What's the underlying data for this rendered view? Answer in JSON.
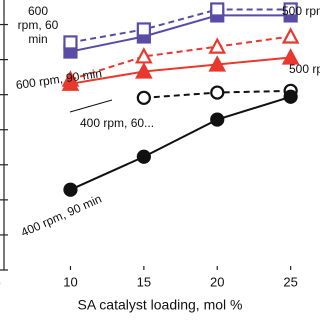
{
  "chart_data": {
    "type": "line",
    "x_label": "SA catalyst loading, mol %",
    "x": [
      10,
      15,
      20,
      25
    ],
    "xlim": [
      5.2,
      27
    ],
    "xticks": [
      5,
      10,
      15,
      20,
      25
    ],
    "ylim": [
      0,
      77
    ],
    "yticks": [
      0,
      10,
      20,
      30,
      40,
      50,
      60,
      70
    ],
    "series": [
      {
        "color": "#5a4ca6",
        "marker": "square",
        "filled": true,
        "dashed": false,
        "values": [
          62.3,
          66.6,
          72.6,
          72.6
        ]
      },
      {
        "color": "#5a4ca6",
        "marker": "square",
        "filled": false,
        "dashed": true,
        "values": [
          64.9,
          68.6,
          74.3,
          74.3
        ]
      },
      {
        "color": "#e8392f",
        "marker": "triangle",
        "filled": false,
        "dashed": true,
        "values": [
          54.3,
          60.9,
          63.7,
          66.6
        ]
      },
      {
        "color": "#e8392f",
        "marker": "triangle",
        "filled": true,
        "dashed": false,
        "values": [
          53.1,
          56.6,
          58.6,
          60.6
        ]
      },
      {
        "color": "#111111",
        "marker": "circle",
        "filled": false,
        "dashed": true,
        "values": [
          null,
          49.1,
          50.6,
          51.1
        ]
      },
      {
        "color": "#111111",
        "marker": "circle",
        "filled": true,
        "dashed": false,
        "values": [
          22.9,
          32.3,
          42.9,
          49.4
        ]
      }
    ],
    "annotations": [
      [
        "600",
        "rpm, 60",
        "min"
      ],
      [
        "500 rpm"
      ],
      [
        "600 rpm, 90 min"
      ],
      [
        "500 rpm"
      ],
      [
        "400 rpm, 60..."
      ],
      [
        "400 rpm, 90 min"
      ]
    ]
  }
}
